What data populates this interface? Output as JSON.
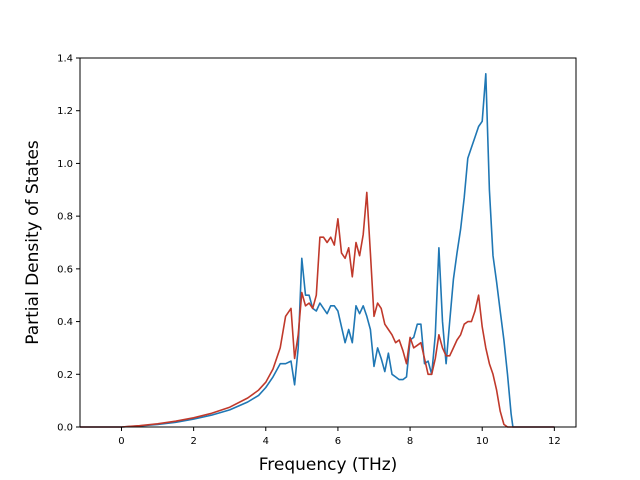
{
  "chart_data": {
    "type": "line",
    "title": "",
    "xlabel": "Frequency (THz)",
    "ylabel": "Partial Density of States",
    "xlim": [
      -1.15,
      12.6
    ],
    "ylim": [
      0,
      1.4
    ],
    "xticks": [
      0,
      2,
      4,
      6,
      8,
      10,
      12
    ],
    "yticks": [
      0.0,
      0.2,
      0.4,
      0.6,
      0.8,
      1.0,
      1.2,
      1.4
    ],
    "xtick_labels": [
      "0",
      "2",
      "4",
      "6",
      "8",
      "10",
      "12"
    ],
    "ytick_labels": [
      "0.0",
      "0.2",
      "0.4",
      "0.6",
      "0.8",
      "1.0",
      "1.2",
      "1.4"
    ],
    "grid": false,
    "series": [
      {
        "color": "#1f77b4",
        "x": [
          -1.15,
          -0.5,
          0,
          0.5,
          1,
          1.5,
          2,
          2.5,
          3,
          3.5,
          3.8,
          4.0,
          4.2,
          4.4,
          4.55,
          4.7,
          4.8,
          4.9,
          5.0,
          5.1,
          5.2,
          5.3,
          5.4,
          5.5,
          5.6,
          5.7,
          5.8,
          5.9,
          6.0,
          6.1,
          6.2,
          6.3,
          6.4,
          6.5,
          6.6,
          6.7,
          6.8,
          6.9,
          7.0,
          7.1,
          7.2,
          7.3,
          7.4,
          7.5,
          7.6,
          7.7,
          7.8,
          7.9,
          8.0,
          8.1,
          8.2,
          8.3,
          8.4,
          8.5,
          8.6,
          8.7,
          8.8,
          8.9,
          9.0,
          9.1,
          9.2,
          9.3,
          9.4,
          9.5,
          9.6,
          9.7,
          9.8,
          9.9,
          10.0,
          10.1,
          10.2,
          10.3,
          10.4,
          10.5,
          10.6,
          10.7,
          10.8,
          10.85,
          11,
          11.5,
          12,
          12.0
        ],
        "y": [
          0,
          0,
          0,
          0.004,
          0.01,
          0.018,
          0.03,
          0.045,
          0.065,
          0.095,
          0.12,
          0.15,
          0.19,
          0.24,
          0.24,
          0.25,
          0.16,
          0.3,
          0.64,
          0.5,
          0.5,
          0.45,
          0.44,
          0.47,
          0.45,
          0.43,
          0.46,
          0.46,
          0.44,
          0.38,
          0.32,
          0.37,
          0.32,
          0.46,
          0.43,
          0.46,
          0.42,
          0.37,
          0.23,
          0.3,
          0.26,
          0.21,
          0.28,
          0.2,
          0.19,
          0.18,
          0.18,
          0.19,
          0.33,
          0.34,
          0.39,
          0.39,
          0.24,
          0.25,
          0.2,
          0.35,
          0.68,
          0.4,
          0.24,
          0.4,
          0.56,
          0.66,
          0.75,
          0.87,
          1.02,
          1.06,
          1.1,
          1.14,
          1.16,
          1.34,
          0.9,
          0.65,
          0.55,
          0.44,
          0.33,
          0.2,
          0.05,
          0.0,
          0,
          0,
          0,
          0
        ],
        "legend": ""
      },
      {
        "color": "#c0392b",
        "x": [
          -1.15,
          -0.5,
          0,
          0.5,
          1,
          1.5,
          2,
          2.5,
          3,
          3.5,
          3.8,
          4.0,
          4.2,
          4.4,
          4.55,
          4.7,
          4.8,
          4.9,
          5.0,
          5.1,
          5.2,
          5.3,
          5.4,
          5.5,
          5.6,
          5.7,
          5.8,
          5.9,
          6.0,
          6.1,
          6.2,
          6.3,
          6.4,
          6.5,
          6.6,
          6.7,
          6.8,
          6.9,
          7.0,
          7.1,
          7.2,
          7.3,
          7.4,
          7.5,
          7.6,
          7.7,
          7.8,
          7.9,
          8.0,
          8.1,
          8.2,
          8.3,
          8.4,
          8.5,
          8.6,
          8.7,
          8.8,
          8.9,
          9.0,
          9.1,
          9.2,
          9.3,
          9.4,
          9.5,
          9.6,
          9.7,
          9.8,
          9.9,
          10.0,
          10.1,
          10.2,
          10.3,
          10.4,
          10.5,
          10.6,
          10.7,
          10.8,
          10.85,
          11,
          11.5,
          12,
          12.0
        ],
        "y": [
          0,
          0,
          0,
          0.005,
          0.012,
          0.022,
          0.035,
          0.052,
          0.075,
          0.11,
          0.14,
          0.17,
          0.22,
          0.3,
          0.42,
          0.45,
          0.26,
          0.35,
          0.51,
          0.46,
          0.47,
          0.45,
          0.5,
          0.72,
          0.72,
          0.7,
          0.72,
          0.69,
          0.79,
          0.66,
          0.64,
          0.68,
          0.57,
          0.7,
          0.65,
          0.73,
          0.89,
          0.66,
          0.42,
          0.47,
          0.45,
          0.39,
          0.37,
          0.35,
          0.32,
          0.33,
          0.29,
          0.24,
          0.34,
          0.3,
          0.31,
          0.32,
          0.26,
          0.2,
          0.2,
          0.26,
          0.35,
          0.3,
          0.27,
          0.27,
          0.3,
          0.33,
          0.35,
          0.39,
          0.4,
          0.4,
          0.44,
          0.5,
          0.38,
          0.3,
          0.24,
          0.2,
          0.14,
          0.06,
          0.01,
          0.0,
          0,
          0,
          0,
          0,
          0,
          0
        ],
        "legend": ""
      }
    ]
  }
}
